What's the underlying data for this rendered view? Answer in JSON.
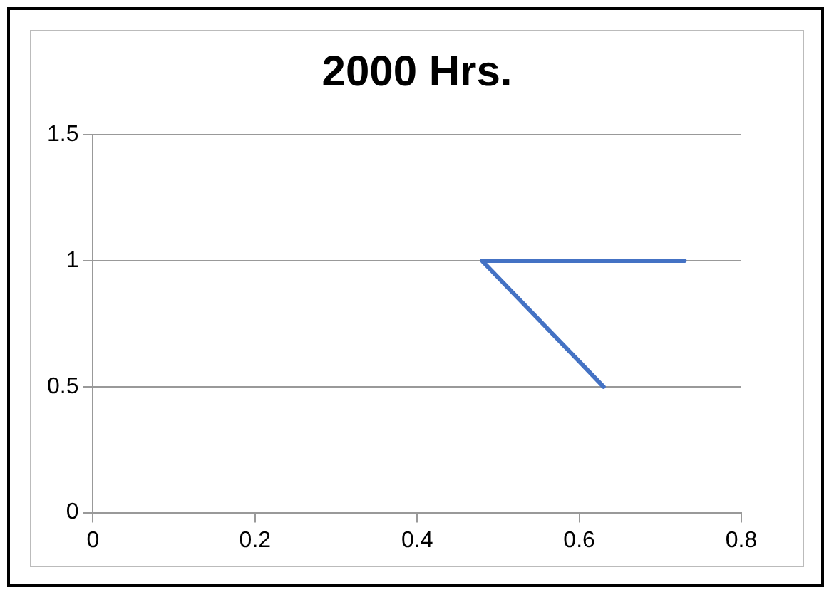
{
  "chart_data": {
    "type": "line",
    "title": "2000 Hrs.",
    "x": [
      0.63,
      0.48,
      0.73
    ],
    "series": [
      {
        "color": "#4472c4",
        "values": [
          0.5,
          1,
          1
        ]
      }
    ],
    "xlim": [
      0,
      0.8
    ],
    "xticks": [
      0,
      0.2,
      0.4,
      0.6,
      0.8
    ],
    "ylim": [
      0,
      1.5
    ],
    "yticks": [
      0,
      0.5,
      1,
      1.5
    ],
    "grid": "y",
    "marker": "none",
    "line_style": "solid",
    "legend": false
  }
}
